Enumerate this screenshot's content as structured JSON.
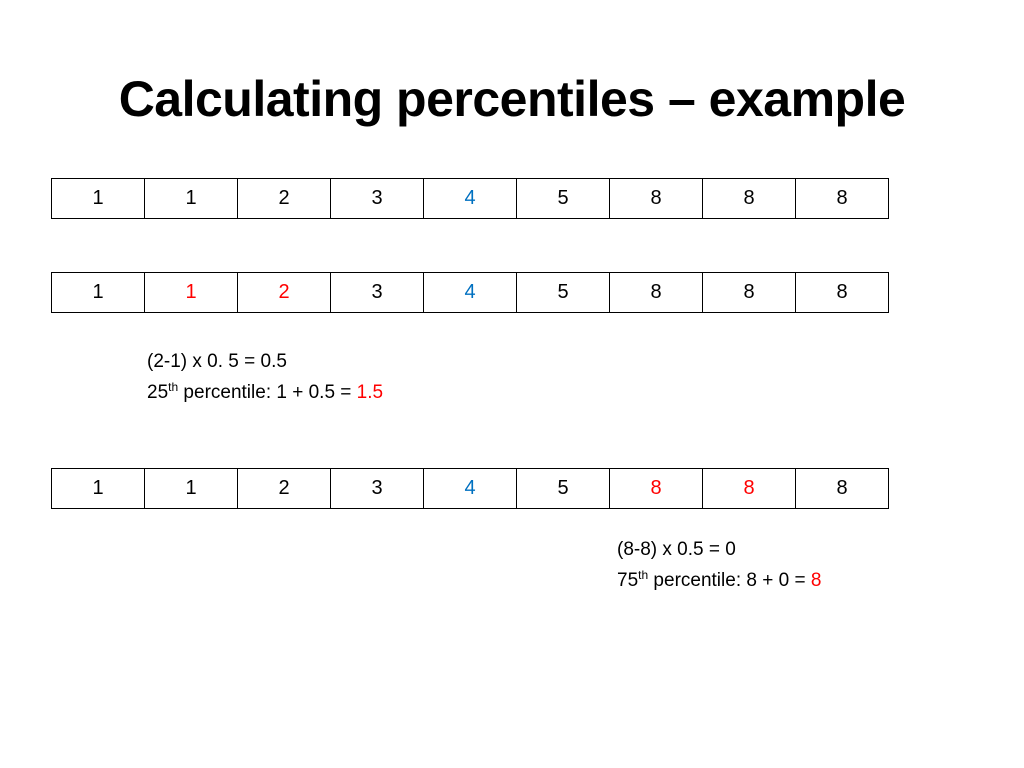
{
  "slide": {
    "title": "Calculating percentiles – example"
  },
  "colors": {
    "default": "#000000",
    "median": "#0070C0",
    "highlight": "#FF0000"
  },
  "rows": [
    {
      "cells": [
        {
          "value": "1",
          "color": "default"
        },
        {
          "value": "1",
          "color": "default"
        },
        {
          "value": "2",
          "color": "default"
        },
        {
          "value": "3",
          "color": "default"
        },
        {
          "value": "4",
          "color": "median"
        },
        {
          "value": "5",
          "color": "default"
        },
        {
          "value": "8",
          "color": "default"
        },
        {
          "value": "8",
          "color": "default"
        },
        {
          "value": "8",
          "color": "default"
        }
      ]
    },
    {
      "cells": [
        {
          "value": "1",
          "color": "default"
        },
        {
          "value": "1",
          "color": "highlight"
        },
        {
          "value": "2",
          "color": "highlight"
        },
        {
          "value": "3",
          "color": "default"
        },
        {
          "value": "4",
          "color": "median"
        },
        {
          "value": "5",
          "color": "default"
        },
        {
          "value": "8",
          "color": "default"
        },
        {
          "value": "8",
          "color": "default"
        },
        {
          "value": "8",
          "color": "default"
        }
      ]
    },
    {
      "cells": [
        {
          "value": "1",
          "color": "default"
        },
        {
          "value": "1",
          "color": "default"
        },
        {
          "value": "2",
          "color": "default"
        },
        {
          "value": "3",
          "color": "default"
        },
        {
          "value": "4",
          "color": "median"
        },
        {
          "value": "5",
          "color": "default"
        },
        {
          "value": "8",
          "color": "highlight"
        },
        {
          "value": "8",
          "color": "highlight"
        },
        {
          "value": "8",
          "color": "default"
        }
      ]
    }
  ],
  "calc_25": {
    "formula": "(2-1) x 0. 5 = 0.5",
    "label_num": "25",
    "label_sup": "th",
    "label_text": " percentile: 1 + 0.5 = ",
    "result": "1.5"
  },
  "calc_75": {
    "formula": "(8-8) x 0.5 = 0",
    "label_num": "75",
    "label_sup": "th",
    "label_text": " percentile: 8 + 0 = ",
    "result": "8"
  }
}
